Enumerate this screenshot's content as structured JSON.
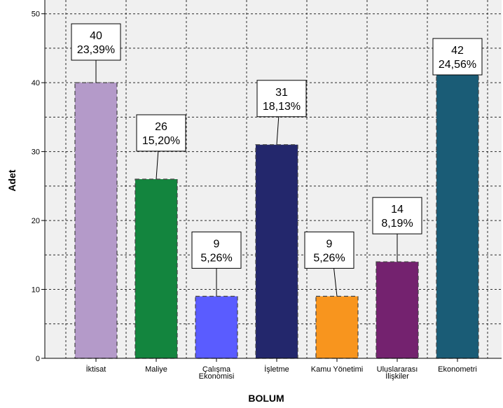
{
  "chart_data": {
    "type": "bar",
    "xlabel": "BOLUM",
    "ylabel": "Adet",
    "ylim": [
      0,
      52
    ],
    "yticks": [
      "0",
      "10",
      "20",
      "30",
      "40",
      "50"
    ],
    "grid": true,
    "categories": [
      {
        "lines": [
          "İktisat"
        ]
      },
      {
        "lines": [
          "Maliye"
        ]
      },
      {
        "lines": [
          "Çalışma",
          "Ekonomisi"
        ]
      },
      {
        "lines": [
          "İşletme"
        ]
      },
      {
        "lines": [
          "Kamu Yönetimi"
        ]
      },
      {
        "lines": [
          "Uluslararası",
          "İlişkiler"
        ]
      },
      {
        "lines": [
          "Ekonometri"
        ]
      }
    ],
    "values": [
      40,
      26,
      9,
      31,
      9,
      14,
      42
    ],
    "percent_labels": [
      "23,39%",
      "15,20%",
      "5,26%",
      "18,13%",
      "5,26%",
      "8,19%",
      "24,56%"
    ],
    "colors": [
      "#b49ac9",
      "#13853e",
      "#5a5cff",
      "#23276c",
      "#f8951e",
      "#74226f",
      "#1a5c76"
    ]
  }
}
